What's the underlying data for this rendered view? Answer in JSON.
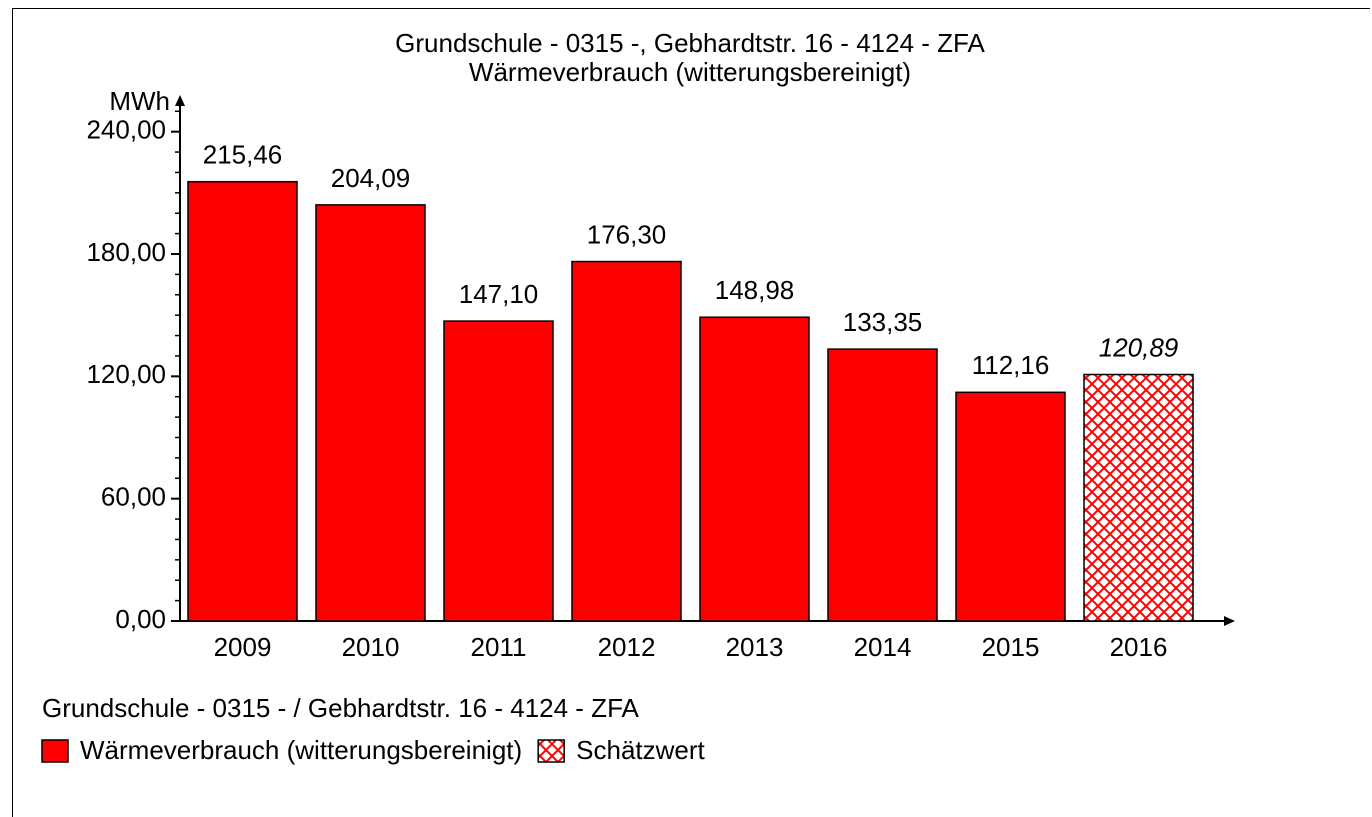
{
  "chart_data": {
    "type": "bar",
    "title": "Grundschule - 0315 -, Gebhardtstr. 16 - 4124 - ZFA",
    "subtitle": "Wärmeverbrauch (witterungsbereinigt)",
    "y_label": "MWh",
    "categories": [
      "2009",
      "2010",
      "2011",
      "2012",
      "2013",
      "2014",
      "2015",
      "2016"
    ],
    "values": [
      215.46,
      204.09,
      147.1,
      176.3,
      148.98,
      133.35,
      112.16,
      120.89
    ],
    "value_labels": [
      "215,46",
      "204,09",
      "147,10",
      "176,30",
      "148,98",
      "133,35",
      "112,16",
      "120,89"
    ],
    "estimated": [
      false,
      false,
      false,
      false,
      false,
      false,
      false,
      true
    ],
    "color": "#ff0000",
    "ylim": [
      0,
      257
    ],
    "yticks": [
      {
        "value": 0,
        "label": "0,00"
      },
      {
        "value": 60,
        "label": "60,00"
      },
      {
        "value": 120,
        "label": "120,00"
      },
      {
        "value": 180,
        "label": "180,00"
      },
      {
        "value": 240,
        "label": "240,00"
      }
    ],
    "minor_yticks": [
      10,
      20,
      30,
      40,
      50,
      70,
      80,
      90,
      100,
      110,
      130,
      140,
      150,
      160,
      170,
      190,
      200,
      210,
      220,
      230,
      250
    ],
    "legend_title": "Grundschule - 0315 - / Gebhardtstr. 16 - 4124 - ZFA",
    "legend": [
      {
        "name": "Wärmeverbrauch (witterungsbereinigt)",
        "pattern": "solid"
      },
      {
        "name": "Schätzwert",
        "pattern": "hatch"
      }
    ]
  }
}
